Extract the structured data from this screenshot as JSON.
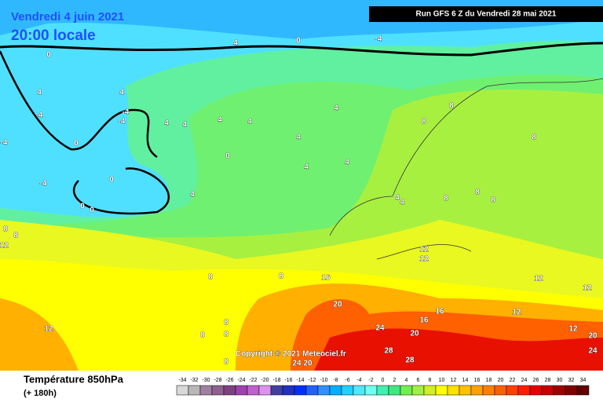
{
  "header": {
    "date": "Vendredi 4 juin 2021",
    "time": "20:00 locale",
    "run": "Run GFS 6 Z du Vendredi 28 mai 2021",
    "copyright": "Copyright © 2021 Meteociel.fr"
  },
  "footer": {
    "title": "Température 850hPa",
    "lead": "(+ 180h)"
  },
  "legend": {
    "values": [
      -34,
      -32,
      -30,
      -28,
      -26,
      -24,
      -22,
      -20,
      -18,
      -16,
      -14,
      -12,
      -10,
      -8,
      -6,
      -4,
      -2,
      0,
      2,
      4,
      6,
      8,
      10,
      12,
      14,
      16,
      18,
      20,
      22,
      24,
      26,
      28,
      30,
      32,
      34
    ],
    "colors": [
      "#d8d8d8",
      "#b8b8b8",
      "#a080a0",
      "#906090",
      "#804080",
      "#a040b0",
      "#c060d0",
      "#e090f0",
      "#4040a0",
      "#2030c0",
      "#0030ff",
      "#2060ff",
      "#3090ff",
      "#00b0ff",
      "#20d0ff",
      "#50e8ff",
      "#70fff0",
      "#40f0b0",
      "#40e880",
      "#70f050",
      "#a0f040",
      "#d0f020",
      "#ffff00",
      "#ffe000",
      "#ffc000",
      "#ffa000",
      "#ff8000",
      "#ff6000",
      "#ff4000",
      "#ff2000",
      "#e80000",
      "#c80000",
      "#a00000",
      "#800000",
      "#600000"
    ]
  },
  "contour_labels": [
    0,
    -4,
    0,
    4,
    4,
    4,
    -4,
    -4,
    -4,
    4,
    4,
    4,
    4,
    4,
    4,
    8,
    8,
    8,
    0,
    4,
    4,
    4,
    0,
    0,
    0,
    -4,
    -4,
    8,
    8,
    12,
    8,
    8,
    8,
    12,
    12,
    8,
    8,
    16,
    20,
    12,
    8,
    8,
    8,
    8,
    24,
    20,
    24,
    20,
    16,
    16,
    28,
    28,
    12,
    12,
    20,
    24,
    12,
    12,
    0,
    4,
    4
  ]
}
